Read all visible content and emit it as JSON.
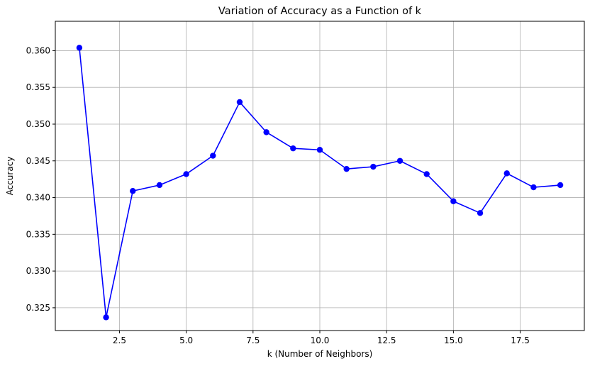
{
  "chart_data": {
    "type": "line",
    "title": "Variation of Accuracy as a Function of k",
    "xlabel": "k (Number of Neighbors)",
    "ylabel": "Accuracy",
    "xlim": [
      0.1,
      19.9
    ],
    "ylim": [
      0.3219,
      0.364
    ],
    "x_ticks": [
      2.5,
      5.0,
      7.5,
      10.0,
      12.5,
      15.0,
      17.5
    ],
    "x_tick_labels": [
      "2.5",
      "5.0",
      "7.5",
      "10.0",
      "12.5",
      "15.0",
      "17.5"
    ],
    "y_ticks": [
      0.325,
      0.33,
      0.335,
      0.34,
      0.345,
      0.35,
      0.355,
      0.36
    ],
    "y_tick_labels": [
      "0.325",
      "0.330",
      "0.335",
      "0.340",
      "0.345",
      "0.350",
      "0.355",
      "0.360"
    ],
    "grid": true,
    "line_color": "#0000ff",
    "grid_color": "#b0b0b0",
    "series": [
      {
        "marker": "circle",
        "x": [
          1,
          2,
          3,
          4,
          5,
          6,
          7,
          8,
          9,
          10,
          11,
          12,
          13,
          14,
          15,
          16,
          17,
          18,
          19
        ],
        "y": [
          0.3604,
          0.3237,
          0.3409,
          0.3417,
          0.3432,
          0.3457,
          0.353,
          0.3489,
          0.3467,
          0.3465,
          0.3439,
          0.3442,
          0.345,
          0.3432,
          0.3395,
          0.3379,
          0.3433,
          0.3414,
          0.3417
        ]
      }
    ]
  }
}
